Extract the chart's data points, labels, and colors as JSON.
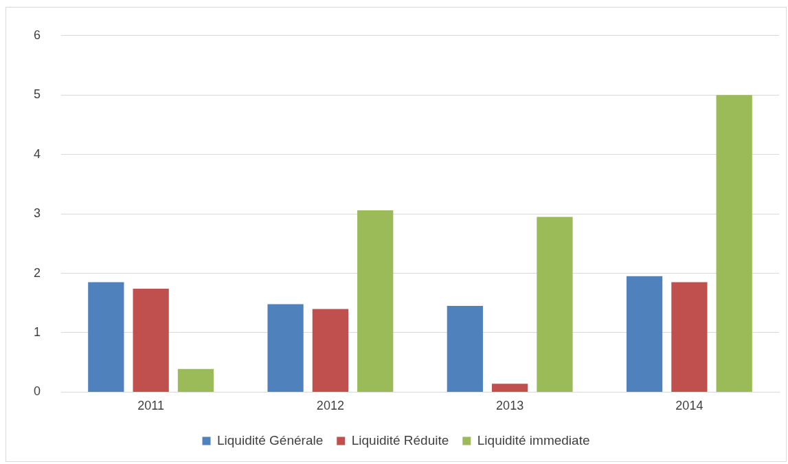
{
  "chart_data": {
    "type": "bar",
    "categories": [
      "2011",
      "2012",
      "2013",
      "2014"
    ],
    "series": [
      {
        "name": "Liquidité Générale",
        "color": "#4f81bd",
        "values": [
          1.85,
          1.48,
          1.45,
          1.95
        ]
      },
      {
        "name": "Liquidité Réduite",
        "color": "#c0504d",
        "values": [
          1.74,
          1.4,
          0.14,
          1.85
        ]
      },
      {
        "name": "Liquidité immediate",
        "color": "#9bbb59",
        "values": [
          0.39,
          3.06,
          2.95,
          5.0
        ]
      }
    ],
    "ylim": [
      0,
      6
    ],
    "yticks": [
      0,
      1,
      2,
      3,
      4,
      5,
      6
    ],
    "grid": "y",
    "legend": "bottom"
  }
}
